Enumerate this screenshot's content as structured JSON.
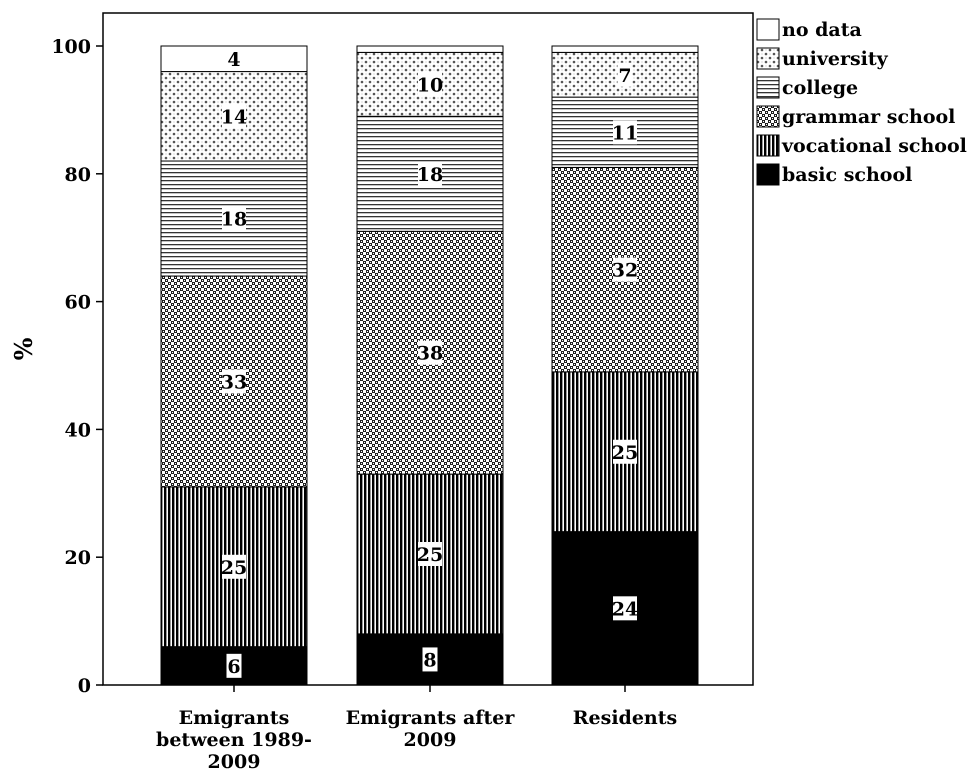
{
  "chart_data": {
    "type": "bar",
    "stacked": true,
    "title": "",
    "xlabel": "",
    "ylabel": "%",
    "ylim": [
      0,
      100
    ],
    "yticks": [
      0,
      20,
      40,
      60,
      80,
      100
    ],
    "grid": false,
    "legend_position": "right",
    "categories": [
      [
        "Emigrants",
        "between 1989-",
        "2009"
      ],
      [
        "Emigrants after",
        "2009"
      ],
      [
        "Residents"
      ]
    ],
    "series": [
      {
        "name": "basic school",
        "pattern": "solid",
        "values": [
          6,
          8,
          24
        ]
      },
      {
        "name": "vocational school",
        "pattern": "vertical",
        "values": [
          25,
          25,
          25
        ]
      },
      {
        "name": "grammar school",
        "pattern": "checker",
        "values": [
          33,
          38,
          32
        ]
      },
      {
        "name": "college",
        "pattern": "horizontal",
        "values": [
          18,
          18,
          11
        ]
      },
      {
        "name": "university",
        "pattern": "dots",
        "values": [
          14,
          10,
          7
        ]
      },
      {
        "name": "no data",
        "pattern": "blank",
        "values": [
          4,
          1,
          1
        ]
      }
    ],
    "data_labels": [
      [
        "6",
        "25",
        "33",
        "18",
        "14",
        "4"
      ],
      [
        "8",
        "25",
        "38",
        "18",
        "10",
        ""
      ],
      [
        "24",
        "25",
        "32",
        "11",
        "7",
        ""
      ]
    ]
  }
}
